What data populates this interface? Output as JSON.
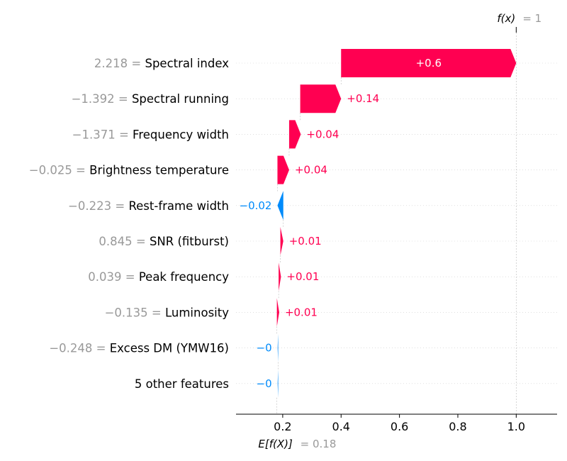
{
  "chart_data": {
    "type": "waterfall",
    "fx_label": "f(x)",
    "fx_value_text": "= 1",
    "fx": 1.0,
    "expected_label": "E[f(X)]",
    "expected_value_text": "= 0.18",
    "expected_value": 0.18,
    "xlim": [
      0.04,
      1.14
    ],
    "x_ticks": [
      0.2,
      0.4,
      0.6,
      0.8,
      1.0
    ],
    "x_tick_labels": [
      "0.2",
      "0.4",
      "0.6",
      "0.8",
      "1.0"
    ],
    "colors": {
      "positive": "#ff0051",
      "negative": "#008bfb",
      "value_gray": "#999999",
      "text": "#000000"
    },
    "features": [
      {
        "value_text": "2.218",
        "name": "Spectral index",
        "start": 0.4,
        "end": 1.0,
        "label": "+0.6"
      },
      {
        "value_text": "−1.392",
        "name": "Spectral running",
        "start": 0.26,
        "end": 0.4,
        "label": "+0.14"
      },
      {
        "value_text": "−1.371",
        "name": "Frequency width",
        "start": 0.222,
        "end": 0.262,
        "label": "+0.04"
      },
      {
        "value_text": "−0.025",
        "name": "Brightness temperature",
        "start": 0.182,
        "end": 0.222,
        "label": "+0.04"
      },
      {
        "value_text": "−0.223",
        "name": "Rest-frame width",
        "start": 0.202,
        "end": 0.182,
        "label": "−0.02"
      },
      {
        "value_text": "0.845",
        "name": "SNR (fitburst)",
        "start": 0.192,
        "end": 0.202,
        "label": "+0.01"
      },
      {
        "value_text": "0.039",
        "name": "Peak frequency",
        "start": 0.186,
        "end": 0.194,
        "label": "+0.01"
      },
      {
        "value_text": "−0.135",
        "name": "Luminosity",
        "start": 0.18,
        "end": 0.188,
        "label": "+0.01"
      },
      {
        "value_text": "−0.248",
        "name": "Excess DM (YMW16)",
        "start": 0.1845,
        "end": 0.1825,
        "label": "−0"
      },
      {
        "value_text": "",
        "name": "5 other features",
        "start": 0.1845,
        "end": 0.1825,
        "label": "−0"
      }
    ]
  }
}
